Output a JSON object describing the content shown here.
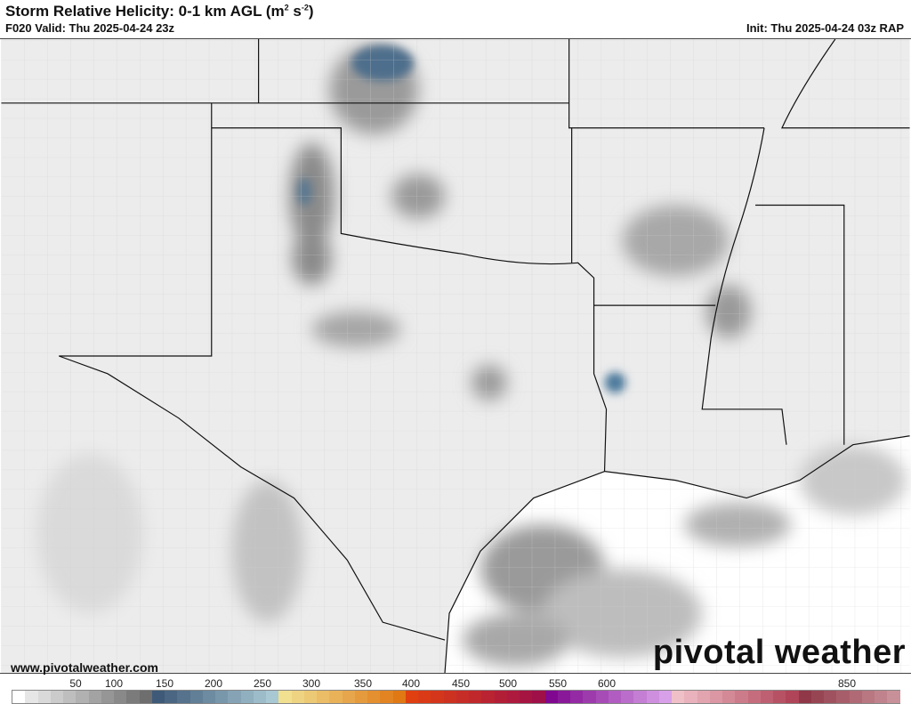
{
  "header": {
    "title": "Storm Relative Helicity: 0-1 km AGL (m² s⁻²)",
    "title_main": "Storm Relative Helicity: 0-1 km AGL (m",
    "title_unit_a": "2",
    "title_mid": " s",
    "title_unit_b": "-2",
    "title_end": ")",
    "valid": "F020 Valid: Thu 2025-04-24 23z",
    "init": "Init: Thu 2025-04-24 03z RAP"
  },
  "footer": {
    "url": "www.pivotalweather.com",
    "logo": "pivotal weather"
  },
  "colorbar": {
    "tick_labels": [
      "50",
      "100",
      "150",
      "200",
      "250",
      "300",
      "350",
      "400",
      "450",
      "500",
      "550",
      "600",
      "850"
    ],
    "segments": [
      {
        "from": "#ffffff",
        "to": "#ffffff",
        "n": 1
      },
      {
        "from": "#e6e6e6",
        "to": "#6e6e6e",
        "n": 10
      },
      {
        "from": "#3e5a78",
        "to": "#a8c8d4",
        "n": 10
      },
      {
        "from": "#f0e090",
        "to": "#e07814",
        "n": 10
      },
      {
        "from": "#e04010",
        "to": "#a01048",
        "n": 11
      },
      {
        "from": "#800890",
        "to": "#d8a0e8",
        "n": 10
      },
      {
        "from": "#f0c0c8",
        "to": "#b04458",
        "n": 10
      },
      {
        "from": "#903848",
        "to": "#c89098",
        "n": 8
      }
    ]
  },
  "map": {
    "land_color": "#ececec",
    "water_color": "#ffffff",
    "border_color": "#111111"
  }
}
